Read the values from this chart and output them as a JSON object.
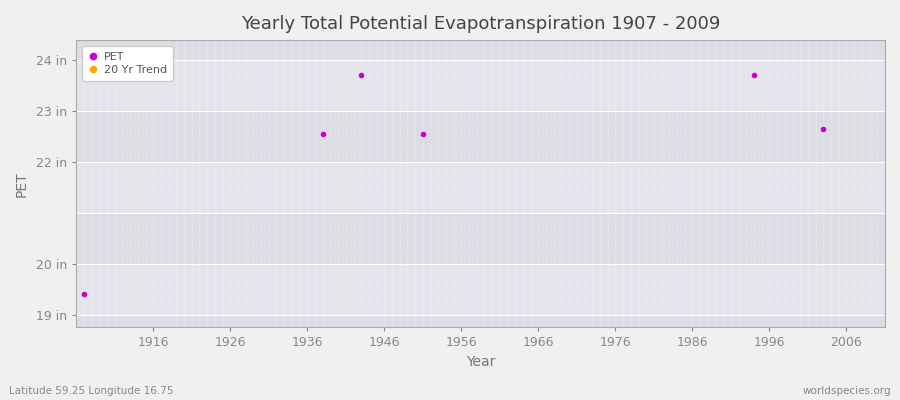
{
  "title": "Yearly Total Potential Evapotranspiration 1907 - 2009",
  "xlabel": "Year",
  "ylabel": "PET",
  "subtitle_left": "Latitude 59.25 Longitude 16.75",
  "subtitle_right": "worldspecies.org",
  "background_color": "#f0f0f0",
  "plot_bg_color": "#e8e8e8",
  "band_colors": [
    "#e0e0e8",
    "#e8e8f0"
  ],
  "grid_color": "#ffffff",
  "pet_color": "#cc00cc",
  "trend_color": "#ffaa00",
  "pet_points": [
    [
      1907,
      19.4
    ],
    [
      1938,
      22.55
    ],
    [
      1943,
      23.72
    ],
    [
      1951,
      22.55
    ],
    [
      1994,
      23.72
    ],
    [
      2003,
      22.65
    ]
  ],
  "trend_points": [],
  "xlim": [
    1906,
    2011
  ],
  "ylim": [
    18.75,
    24.4
  ],
  "yticks": [
    19,
    20,
    22,
    23,
    24
  ],
  "ytick_labels": [
    "19 in",
    "20 in",
    "22 in",
    "23 in",
    "24 in"
  ],
  "xticks": [
    1916,
    1926,
    1936,
    1946,
    1956,
    1966,
    1976,
    1986,
    1996,
    2006
  ],
  "marker_size": 3,
  "legend_loc": "upper left"
}
